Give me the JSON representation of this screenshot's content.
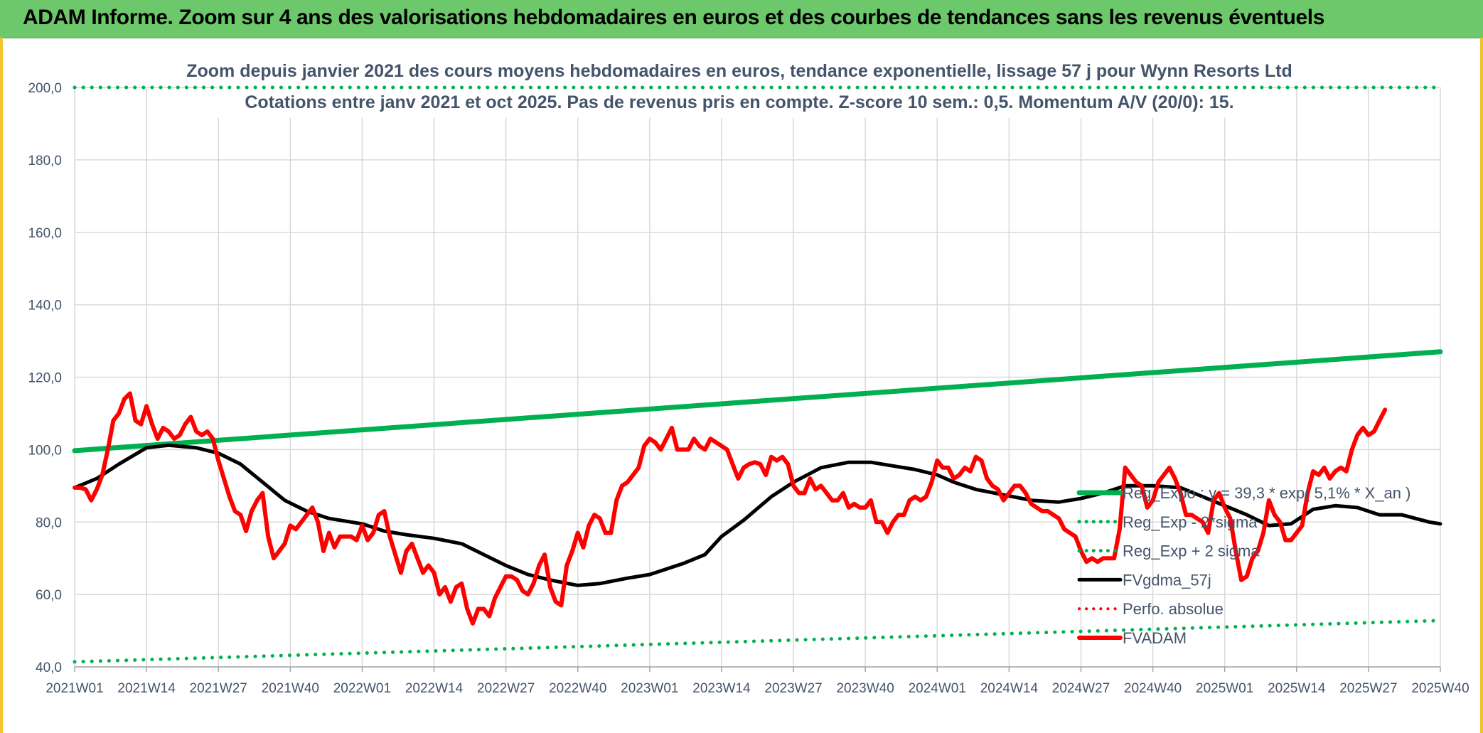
{
  "header": {
    "title": "ADAM Informe. Zoom sur 4 ans des valorisations hebdomadaires en euros et des courbes de tendances sans les revenus éventuels"
  },
  "chart_data": {
    "type": "line",
    "title_line1": "Zoom depuis janvier 2021 des cours moyens hebdomadaires en euros, tendance exponentielle, lissage 57 j pour Wynn Resorts Ltd",
    "title_line2": "Cotations entre janv 2021 et oct 2025. Pas de revenus pris en compte. Z-score 10 sem.: 0,5. Momentum A/V (20/0): 15.",
    "ylim": [
      40,
      200
    ],
    "yticks": [
      "200,0",
      "180,0",
      "160,0",
      "140,0",
      "120,0",
      "100,0",
      "80,0",
      "60,0",
      "40,0"
    ],
    "ytick_values": [
      200,
      180,
      160,
      140,
      120,
      100,
      80,
      60,
      40
    ],
    "xticks": [
      "2021W01",
      "2021W14",
      "2021W27",
      "2021W40",
      "2022W01",
      "2022W14",
      "2022W27",
      "2022W40",
      "2023W01",
      "2023W14",
      "2023W27",
      "2023W40",
      "2024W01",
      "2024W14",
      "2024W27",
      "2024W40",
      "2025W01",
      "2025W14",
      "2025W27",
      "2025W40"
    ],
    "n_weeks": 248,
    "series": [
      {
        "name": "Reg_Expo : y = 39,3 * exp( 5,1% * X_an )",
        "color": "#00b050",
        "style": "solid",
        "values": [
          [
            0,
            99.7
          ],
          [
            247,
            127.0
          ]
        ]
      },
      {
        "name": "Reg_Exp - 2*sigma",
        "color": "#00b050",
        "style": "dotted",
        "values": [
          [
            0,
            41.4
          ],
          [
            247,
            52.8
          ]
        ]
      },
      {
        "name": "Reg_Exp + 2 sigma",
        "color": "#00b050",
        "style": "dotted",
        "values": [
          [
            0,
            200.0
          ],
          [
            247,
            200.0
          ]
        ]
      },
      {
        "name": "FVgdma_57j",
        "color": "#000000",
        "style": "solid",
        "values": [
          [
            0,
            89.5
          ],
          [
            4,
            92
          ],
          [
            8,
            96
          ],
          [
            13,
            100.5
          ],
          [
            17,
            101.2
          ],
          [
            22,
            100.5
          ],
          [
            26,
            99
          ],
          [
            30,
            96
          ],
          [
            34,
            91
          ],
          [
            38,
            86
          ],
          [
            42,
            83
          ],
          [
            46,
            81
          ],
          [
            52,
            79.5
          ],
          [
            56,
            77.5
          ],
          [
            60,
            76.5
          ],
          [
            65,
            75.5
          ],
          [
            70,
            74
          ],
          [
            74,
            71
          ],
          [
            78,
            68
          ],
          [
            82,
            65.5
          ],
          [
            86,
            64
          ],
          [
            91,
            62.5
          ],
          [
            95,
            63
          ],
          [
            100,
            64.5
          ],
          [
            104,
            65.5
          ],
          [
            110,
            68.5
          ],
          [
            114,
            71
          ],
          [
            117,
            76
          ],
          [
            121,
            80.5
          ],
          [
            126,
            87
          ],
          [
            130,
            91
          ],
          [
            135,
            95
          ],
          [
            140,
            96.5
          ],
          [
            144,
            96.5
          ],
          [
            148,
            95.5
          ],
          [
            152,
            94.5
          ],
          [
            156,
            93
          ],
          [
            159,
            91
          ],
          [
            163,
            89
          ],
          [
            168,
            87.5
          ],
          [
            173,
            86
          ],
          [
            178,
            85.5
          ],
          [
            182,
            86.5
          ],
          [
            186,
            88
          ],
          [
            190,
            90
          ],
          [
            195,
            90
          ],
          [
            200,
            89.5
          ],
          [
            204,
            87
          ],
          [
            208,
            84.5
          ],
          [
            212,
            82
          ],
          [
            216,
            79
          ],
          [
            220,
            79.5
          ],
          [
            224,
            83.5
          ],
          [
            228,
            84.5
          ],
          [
            232,
            84
          ],
          [
            236,
            82
          ],
          [
            240,
            82
          ],
          [
            245,
            80
          ],
          [
            247,
            79.5
          ]
        ]
      },
      {
        "name": "Perfo. absolue",
        "color": "#ff0000",
        "style": "dotted",
        "values": []
      },
      {
        "name": "FVADAM",
        "color": "#ff0000",
        "style": "solid",
        "values": [
          [
            0,
            89.5
          ],
          [
            1,
            89.5
          ],
          [
            2,
            89
          ],
          [
            3,
            86
          ],
          [
            4,
            89
          ],
          [
            5,
            93
          ],
          [
            6,
            100
          ],
          [
            7,
            108
          ],
          [
            8,
            110
          ],
          [
            9,
            114
          ],
          [
            10,
            115.5
          ],
          [
            11,
            108
          ],
          [
            12,
            107
          ],
          [
            13,
            112
          ],
          [
            14,
            107
          ],
          [
            15,
            103
          ],
          [
            16,
            106
          ],
          [
            17,
            105
          ],
          [
            18,
            103
          ],
          [
            19,
            104
          ],
          [
            20,
            107
          ],
          [
            21,
            109
          ],
          [
            22,
            105
          ],
          [
            23,
            104
          ],
          [
            24,
            105
          ],
          [
            25,
            103
          ],
          [
            26,
            97
          ],
          [
            27,
            92
          ],
          [
            28,
            87
          ],
          [
            29,
            83
          ],
          [
            30,
            82
          ],
          [
            31,
            77.5
          ],
          [
            32,
            83
          ],
          [
            33,
            86
          ],
          [
            34,
            88
          ],
          [
            35,
            76
          ],
          [
            36,
            70
          ],
          [
            37,
            72
          ],
          [
            38,
            74
          ],
          [
            39,
            79
          ],
          [
            40,
            78
          ],
          [
            41,
            80
          ],
          [
            42,
            82
          ],
          [
            43,
            84
          ],
          [
            44,
            80
          ],
          [
            45,
            72
          ],
          [
            46,
            77
          ],
          [
            47,
            73
          ],
          [
            48,
            76
          ],
          [
            49,
            76
          ],
          [
            50,
            76
          ],
          [
            51,
            75
          ],
          [
            52,
            79
          ],
          [
            53,
            75
          ],
          [
            54,
            77
          ],
          [
            55,
            82
          ],
          [
            56,
            83
          ],
          [
            57,
            76
          ],
          [
            58,
            71
          ],
          [
            59,
            66
          ],
          [
            60,
            72
          ],
          [
            61,
            74
          ],
          [
            62,
            70
          ],
          [
            63,
            66
          ],
          [
            64,
            68
          ],
          [
            65,
            66
          ],
          [
            66,
            60
          ],
          [
            67,
            62
          ],
          [
            68,
            58
          ],
          [
            69,
            62
          ],
          [
            70,
            63
          ],
          [
            71,
            56
          ],
          [
            72,
            52
          ],
          [
            73,
            56
          ],
          [
            74,
            56
          ],
          [
            75,
            54
          ],
          [
            76,
            59
          ],
          [
            77,
            62
          ],
          [
            78,
            65
          ],
          [
            79,
            65
          ],
          [
            80,
            64
          ],
          [
            81,
            61
          ],
          [
            82,
            60
          ],
          [
            83,
            63
          ],
          [
            84,
            68
          ],
          [
            85,
            71
          ],
          [
            86,
            62
          ],
          [
            87,
            58
          ],
          [
            88,
            57
          ],
          [
            89,
            68
          ],
          [
            90,
            72
          ],
          [
            91,
            77
          ],
          [
            92,
            73
          ],
          [
            93,
            79
          ],
          [
            94,
            82
          ],
          [
            95,
            81
          ],
          [
            96,
            77
          ],
          [
            97,
            77
          ],
          [
            98,
            86
          ],
          [
            99,
            90
          ],
          [
            100,
            91
          ],
          [
            101,
            93
          ],
          [
            102,
            95
          ],
          [
            103,
            101
          ],
          [
            104,
            103
          ],
          [
            105,
            102
          ],
          [
            106,
            100
          ],
          [
            107,
            103
          ],
          [
            108,
            106
          ],
          [
            109,
            100
          ],
          [
            110,
            100
          ],
          [
            111,
            100
          ],
          [
            112,
            103
          ],
          [
            113,
            101
          ],
          [
            114,
            100
          ],
          [
            115,
            103
          ],
          [
            116,
            102
          ],
          [
            117,
            101
          ],
          [
            118,
            100
          ],
          [
            119,
            96
          ],
          [
            120,
            92
          ],
          [
            121,
            95
          ],
          [
            122,
            96
          ],
          [
            123,
            96.5
          ],
          [
            124,
            96
          ],
          [
            125,
            93
          ],
          [
            126,
            98
          ],
          [
            127,
            97
          ],
          [
            128,
            98
          ],
          [
            129,
            96
          ],
          [
            130,
            90
          ],
          [
            131,
            88
          ],
          [
            132,
            88
          ],
          [
            133,
            92
          ],
          [
            134,
            89
          ],
          [
            135,
            90
          ],
          [
            136,
            88
          ],
          [
            137,
            86
          ],
          [
            138,
            86
          ],
          [
            139,
            88
          ],
          [
            140,
            84
          ],
          [
            141,
            85
          ],
          [
            142,
            84
          ],
          [
            143,
            84
          ],
          [
            144,
            86
          ],
          [
            145,
            80
          ],
          [
            146,
            80
          ],
          [
            147,
            77
          ],
          [
            148,
            80
          ],
          [
            149,
            82
          ],
          [
            150,
            82
          ],
          [
            151,
            86
          ],
          [
            152,
            87
          ],
          [
            153,
            86
          ],
          [
            154,
            87
          ],
          [
            155,
            91
          ],
          [
            156,
            97
          ],
          [
            157,
            95
          ],
          [
            158,
            95
          ],
          [
            159,
            92
          ],
          [
            160,
            93
          ],
          [
            161,
            95
          ],
          [
            162,
            94
          ],
          [
            163,
            98
          ],
          [
            164,
            97
          ],
          [
            165,
            92
          ],
          [
            166,
            90
          ],
          [
            167,
            89
          ],
          [
            168,
            86
          ],
          [
            169,
            88
          ],
          [
            170,
            90
          ],
          [
            171,
            90
          ],
          [
            172,
            88
          ],
          [
            173,
            85
          ],
          [
            174,
            84
          ],
          [
            175,
            83
          ],
          [
            176,
            83
          ],
          [
            177,
            82
          ],
          [
            178,
            81
          ],
          [
            179,
            78
          ],
          [
            180,
            77
          ],
          [
            181,
            76
          ],
          [
            182,
            72
          ],
          [
            183,
            69
          ],
          [
            184,
            70
          ],
          [
            185,
            69
          ],
          [
            186,
            70
          ],
          [
            187,
            70
          ],
          [
            188,
            70
          ],
          [
            189,
            78
          ],
          [
            190,
            95
          ],
          [
            191,
            93
          ],
          [
            192,
            91
          ],
          [
            193,
            90
          ],
          [
            194,
            84
          ],
          [
            195,
            86
          ],
          [
            196,
            91
          ],
          [
            197,
            93
          ],
          [
            198,
            95
          ],
          [
            199,
            92
          ],
          [
            200,
            88
          ],
          [
            201,
            82
          ],
          [
            202,
            82
          ],
          [
            203,
            81
          ],
          [
            204,
            80
          ],
          [
            205,
            77
          ],
          [
            206,
            86
          ],
          [
            207,
            88
          ],
          [
            208,
            84
          ],
          [
            209,
            81
          ],
          [
            210,
            72
          ],
          [
            211,
            64
          ],
          [
            212,
            65
          ],
          [
            213,
            70
          ],
          [
            214,
            72
          ],
          [
            215,
            77
          ],
          [
            216,
            86
          ],
          [
            217,
            82
          ],
          [
            218,
            80
          ],
          [
            219,
            75
          ],
          [
            220,
            75
          ],
          [
            221,
            77
          ],
          [
            222,
            79
          ],
          [
            223,
            88
          ],
          [
            224,
            94
          ],
          [
            225,
            93
          ],
          [
            226,
            95
          ],
          [
            227,
            92
          ],
          [
            228,
            94
          ],
          [
            229,
            95
          ],
          [
            230,
            94
          ],
          [
            231,
            100
          ],
          [
            232,
            104
          ],
          [
            233,
            106
          ],
          [
            234,
            104
          ],
          [
            235,
            105
          ],
          [
            236,
            108
          ],
          [
            237,
            111
          ]
        ]
      }
    ],
    "legend_position": "right"
  }
}
